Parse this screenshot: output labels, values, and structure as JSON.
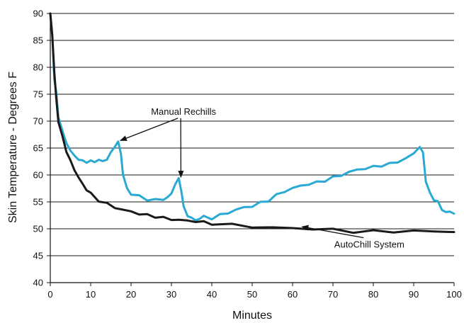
{
  "chart_data": {
    "type": "line",
    "xlabel": "Minutes",
    "ylabel": "Skin Temperature - Degrees F",
    "xlim": [
      0,
      100
    ],
    "ylim": [
      40,
      90
    ],
    "x_ticks": [
      0,
      10,
      20,
      30,
      40,
      50,
      60,
      70,
      80,
      90,
      100
    ],
    "y_ticks": [
      40,
      45,
      50,
      55,
      60,
      65,
      70,
      75,
      80,
      85,
      90
    ],
    "grid": "horizontal",
    "series": [
      {
        "key": "manual",
        "color": "#29a9d3",
        "points": [
          [
            0,
            90
          ],
          [
            0.5,
            86
          ],
          [
            1,
            78
          ],
          [
            1.5,
            75
          ],
          [
            2,
            71
          ],
          [
            3,
            68
          ],
          [
            4,
            66
          ],
          [
            5,
            64.5
          ],
          [
            6,
            63.5
          ],
          [
            7,
            63
          ],
          [
            8,
            62.5
          ],
          [
            9,
            62.5
          ],
          [
            10,
            62.5
          ],
          [
            11,
            62.5
          ],
          [
            12,
            62.8
          ],
          [
            13,
            62.5
          ],
          [
            14,
            63
          ],
          [
            15,
            64
          ],
          [
            16,
            65.5
          ],
          [
            16.8,
            66
          ],
          [
            17.5,
            64
          ],
          [
            18,
            60
          ],
          [
            19,
            57.5
          ],
          [
            20,
            56.5
          ],
          [
            22,
            56
          ],
          [
            24,
            55.5
          ],
          [
            26,
            55.3
          ],
          [
            28,
            55.5
          ],
          [
            29,
            55.8
          ],
          [
            30,
            56.5
          ],
          [
            31,
            58.5
          ],
          [
            31.8,
            59.2
          ],
          [
            32.5,
            57
          ],
          [
            33,
            54
          ],
          [
            34,
            52.5
          ],
          [
            35,
            52
          ],
          [
            36,
            51.5
          ],
          [
            37,
            52
          ],
          [
            38,
            52.2
          ],
          [
            40,
            52
          ],
          [
            42,
            52.5
          ],
          [
            44,
            53
          ],
          [
            46,
            53.5
          ],
          [
            48,
            54
          ],
          [
            50,
            54.2
          ],
          [
            52,
            54.8
          ],
          [
            54,
            55.3
          ],
          [
            56,
            56.2
          ],
          [
            58,
            57
          ],
          [
            60,
            57.5
          ],
          [
            62,
            58
          ],
          [
            64,
            58.3
          ],
          [
            66,
            58.6
          ],
          [
            68,
            59
          ],
          [
            70,
            59.5
          ],
          [
            72,
            60
          ],
          [
            74,
            60.5
          ],
          [
            76,
            61
          ],
          [
            78,
            61.2
          ],
          [
            80,
            61.5
          ],
          [
            82,
            61.8
          ],
          [
            84,
            62
          ],
          [
            86,
            62.5
          ],
          [
            88,
            63
          ],
          [
            90,
            64
          ],
          [
            91.5,
            65.3
          ],
          [
            92.3,
            64
          ],
          [
            93,
            59
          ],
          [
            94,
            56.5
          ],
          [
            95,
            55.5
          ],
          [
            96,
            55
          ],
          [
            97,
            53.5
          ],
          [
            98,
            53.2
          ],
          [
            99,
            53
          ],
          [
            100,
            52.8
          ]
        ]
      },
      {
        "key": "autochill",
        "color": "#1a1a1a",
        "points": [
          [
            0,
            90
          ],
          [
            0.5,
            86
          ],
          [
            1,
            79
          ],
          [
            1.5,
            74
          ],
          [
            2,
            70
          ],
          [
            3,
            67
          ],
          [
            4,
            64.5
          ],
          [
            5,
            62.5
          ],
          [
            6,
            61
          ],
          [
            7,
            59.5
          ],
          [
            8,
            58.3
          ],
          [
            9,
            57.3
          ],
          [
            10,
            56.5
          ],
          [
            12,
            55.3
          ],
          [
            14,
            54.6
          ],
          [
            16,
            54
          ],
          [
            18,
            53.5
          ],
          [
            20,
            53.2
          ],
          [
            22,
            52.8
          ],
          [
            24,
            52.5
          ],
          [
            26,
            52.3
          ],
          [
            28,
            52
          ],
          [
            30,
            51.8
          ],
          [
            32,
            51.6
          ],
          [
            34,
            51.5
          ],
          [
            36,
            51.4
          ],
          [
            38,
            51.2
          ],
          [
            40,
            51
          ],
          [
            45,
            50.7
          ],
          [
            50,
            50.4
          ],
          [
            55,
            50.2
          ],
          [
            60,
            50.1
          ],
          [
            65,
            50
          ],
          [
            70,
            49.8
          ],
          [
            75,
            49.5
          ],
          [
            80,
            49.5
          ],
          [
            85,
            49.5
          ],
          [
            90,
            49.6
          ],
          [
            95,
            49.5
          ],
          [
            100,
            49.4
          ]
        ]
      }
    ],
    "annotations": [
      {
        "text": "Manual Rechills",
        "x": 33,
        "y": 71.2,
        "arrows_to": [
          [
            17,
            66
          ],
          [
            32,
            59.2
          ]
        ]
      },
      {
        "text": "AutoChill System",
        "x": 79,
        "y": 46.5,
        "arrows_to": [
          [
            62,
            50
          ]
        ]
      }
    ]
  }
}
